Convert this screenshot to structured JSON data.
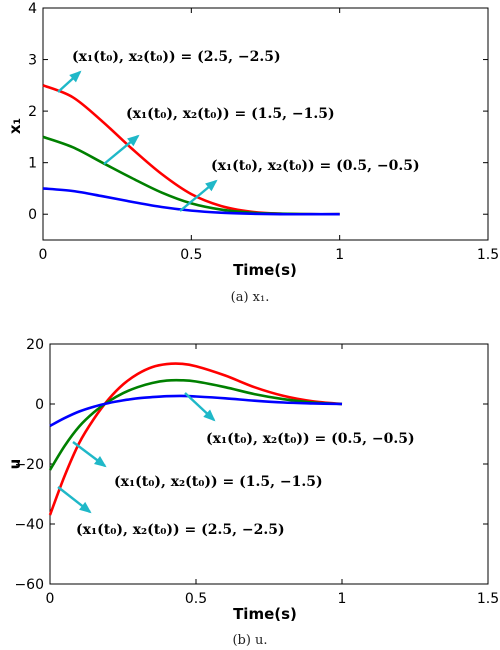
{
  "chart_data": [
    {
      "type": "line",
      "caption": "(a) x₁.",
      "xlabel": "Time(s)",
      "ylabel": "x₁",
      "xlim": [
        0,
        1.5
      ],
      "ylim": [
        -0.5,
        4
      ],
      "xticks": [
        0,
        0.5,
        1,
        1.5
      ],
      "xtick_labels": [
        "0",
        "0.5",
        "1",
        "1.5"
      ],
      "yticks": [
        0,
        1,
        2,
        3,
        4
      ],
      "ytick_labels": [
        "0",
        "1",
        "2",
        "3",
        "4"
      ],
      "grid": false,
      "series": [
        {
          "color": "#ff0000",
          "x": [
            0,
            0.1,
            0.2,
            0.3,
            0.4,
            0.5,
            0.6,
            0.7,
            0.8,
            0.9,
            1.0
          ],
          "y": [
            2.5,
            2.27,
            1.8,
            1.27,
            0.78,
            0.39,
            0.16,
            0.05,
            0.01,
            0.0,
            0.0
          ]
        },
        {
          "color": "#008000",
          "x": [
            0,
            0.1,
            0.2,
            0.3,
            0.4,
            0.5,
            0.6,
            0.7,
            0.8,
            0.9,
            1.0
          ],
          "y": [
            1.5,
            1.3,
            1.0,
            0.7,
            0.42,
            0.21,
            0.09,
            0.03,
            0.01,
            0.0,
            0.0
          ]
        },
        {
          "color": "#0000ff",
          "x": [
            0,
            0.1,
            0.2,
            0.3,
            0.4,
            0.5,
            0.6,
            0.7,
            0.8,
            0.9,
            1.0
          ],
          "y": [
            0.5,
            0.45,
            0.35,
            0.24,
            0.14,
            0.07,
            0.03,
            0.01,
            0.0,
            0.0,
            0.0
          ]
        }
      ],
      "annotations": [
        {
          "text": "(x₁(t₀), x₂(t₀)) = (2.5, −2.5)"
        },
        {
          "text": "(x₁(t₀), x₂(t₀)) = (1.5, −1.5)"
        },
        {
          "text": "(x₁(t₀), x₂(t₀)) = (0.5, −0.5)"
        }
      ]
    },
    {
      "type": "line",
      "caption": "(b) u.",
      "xlabel": "Time(s)",
      "ylabel": "u",
      "xlim": [
        0,
        1.5
      ],
      "ylim": [
        -60,
        20
      ],
      "xticks": [
        0,
        0.5,
        1,
        1.5
      ],
      "xtick_labels": [
        "0",
        "0.5",
        "1",
        "1.5"
      ],
      "yticks": [
        -60,
        -40,
        -20,
        0,
        20
      ],
      "ytick_labels": [
        "−60",
        "−40",
        "−20",
        "0",
        "20"
      ],
      "grid": false,
      "series": [
        {
          "color": "#ff0000",
          "x": [
            0,
            0.05,
            0.1,
            0.15,
            0.2,
            0.25,
            0.3,
            0.35,
            0.4,
            0.45,
            0.5,
            0.6,
            0.7,
            0.8,
            0.9,
            1.0
          ],
          "y": [
            -37,
            -24,
            -13,
            -5,
            1.5,
            6.5,
            10,
            12.3,
            13.3,
            13.4,
            12.6,
            9.5,
            5.6,
            2.7,
            0.9,
            0.0
          ]
        },
        {
          "color": "#008000",
          "x": [
            0,
            0.05,
            0.1,
            0.15,
            0.2,
            0.25,
            0.3,
            0.35,
            0.4,
            0.45,
            0.5,
            0.6,
            0.7,
            0.8,
            0.9,
            1.0
          ],
          "y": [
            -22,
            -14,
            -7.5,
            -2.8,
            0.8,
            3.6,
            5.6,
            7.0,
            7.8,
            7.9,
            7.5,
            5.6,
            3.3,
            1.6,
            0.5,
            0.0
          ]
        },
        {
          "color": "#0000ff",
          "x": [
            0,
            0.05,
            0.1,
            0.15,
            0.2,
            0.25,
            0.3,
            0.35,
            0.4,
            0.45,
            0.5,
            0.6,
            0.7,
            0.8,
            0.9,
            1.0
          ],
          "y": [
            -7.3,
            -4.7,
            -2.5,
            -0.9,
            0.3,
            1.2,
            1.9,
            2.3,
            2.6,
            2.7,
            2.5,
            1.9,
            1.1,
            0.5,
            0.2,
            0.0
          ]
        }
      ],
      "annotations": [
        {
          "text": "(x₁(t₀), x₂(t₀)) = (0.5, −0.5)"
        },
        {
          "text": "(x₁(t₀), x₂(t₀)) = (1.5, −1.5)"
        },
        {
          "text": "(x₁(t₀), x₂(t₀)) = (2.5, −2.5)"
        }
      ]
    }
  ],
  "colors": {
    "arrow": "#1fb8c8"
  }
}
